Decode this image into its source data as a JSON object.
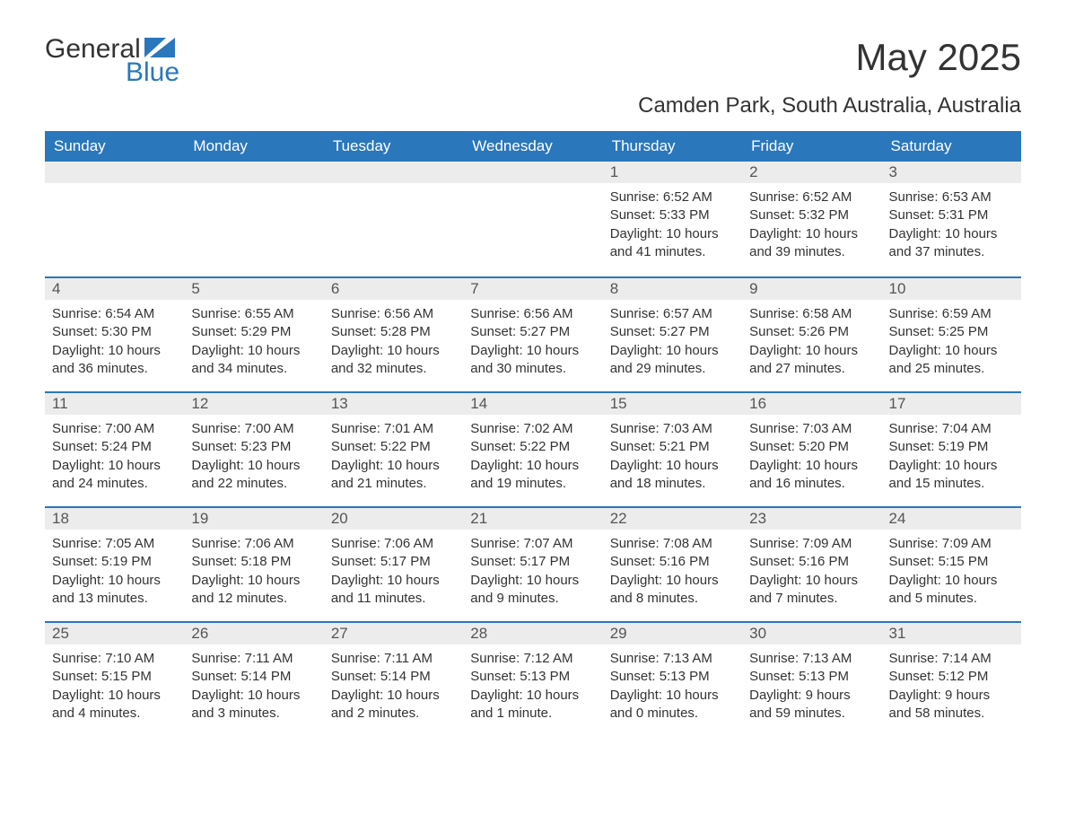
{
  "logo": {
    "word1": "General",
    "word2": "Blue"
  },
  "title": "May 2025",
  "location": "Camden Park, South Australia, Australia",
  "colors": {
    "brand_blue": "#2a77bc",
    "header_text": "#ffffff",
    "daynum_bg": "#ececec",
    "body_text": "#333333",
    "background": "#ffffff"
  },
  "weekdays": [
    "Sunday",
    "Monday",
    "Tuesday",
    "Wednesday",
    "Thursday",
    "Friday",
    "Saturday"
  ],
  "weeks": [
    [
      null,
      null,
      null,
      null,
      {
        "n": "1",
        "sunrise": "Sunrise: 6:52 AM",
        "sunset": "Sunset: 5:33 PM",
        "day1": "Daylight: 10 hours",
        "day2": "and 41 minutes."
      },
      {
        "n": "2",
        "sunrise": "Sunrise: 6:52 AM",
        "sunset": "Sunset: 5:32 PM",
        "day1": "Daylight: 10 hours",
        "day2": "and 39 minutes."
      },
      {
        "n": "3",
        "sunrise": "Sunrise: 6:53 AM",
        "sunset": "Sunset: 5:31 PM",
        "day1": "Daylight: 10 hours",
        "day2": "and 37 minutes."
      }
    ],
    [
      {
        "n": "4",
        "sunrise": "Sunrise: 6:54 AM",
        "sunset": "Sunset: 5:30 PM",
        "day1": "Daylight: 10 hours",
        "day2": "and 36 minutes."
      },
      {
        "n": "5",
        "sunrise": "Sunrise: 6:55 AM",
        "sunset": "Sunset: 5:29 PM",
        "day1": "Daylight: 10 hours",
        "day2": "and 34 minutes."
      },
      {
        "n": "6",
        "sunrise": "Sunrise: 6:56 AM",
        "sunset": "Sunset: 5:28 PM",
        "day1": "Daylight: 10 hours",
        "day2": "and 32 minutes."
      },
      {
        "n": "7",
        "sunrise": "Sunrise: 6:56 AM",
        "sunset": "Sunset: 5:27 PM",
        "day1": "Daylight: 10 hours",
        "day2": "and 30 minutes."
      },
      {
        "n": "8",
        "sunrise": "Sunrise: 6:57 AM",
        "sunset": "Sunset: 5:27 PM",
        "day1": "Daylight: 10 hours",
        "day2": "and 29 minutes."
      },
      {
        "n": "9",
        "sunrise": "Sunrise: 6:58 AM",
        "sunset": "Sunset: 5:26 PM",
        "day1": "Daylight: 10 hours",
        "day2": "and 27 minutes."
      },
      {
        "n": "10",
        "sunrise": "Sunrise: 6:59 AM",
        "sunset": "Sunset: 5:25 PM",
        "day1": "Daylight: 10 hours",
        "day2": "and 25 minutes."
      }
    ],
    [
      {
        "n": "11",
        "sunrise": "Sunrise: 7:00 AM",
        "sunset": "Sunset: 5:24 PM",
        "day1": "Daylight: 10 hours",
        "day2": "and 24 minutes."
      },
      {
        "n": "12",
        "sunrise": "Sunrise: 7:00 AM",
        "sunset": "Sunset: 5:23 PM",
        "day1": "Daylight: 10 hours",
        "day2": "and 22 minutes."
      },
      {
        "n": "13",
        "sunrise": "Sunrise: 7:01 AM",
        "sunset": "Sunset: 5:22 PM",
        "day1": "Daylight: 10 hours",
        "day2": "and 21 minutes."
      },
      {
        "n": "14",
        "sunrise": "Sunrise: 7:02 AM",
        "sunset": "Sunset: 5:22 PM",
        "day1": "Daylight: 10 hours",
        "day2": "and 19 minutes."
      },
      {
        "n": "15",
        "sunrise": "Sunrise: 7:03 AM",
        "sunset": "Sunset: 5:21 PM",
        "day1": "Daylight: 10 hours",
        "day2": "and 18 minutes."
      },
      {
        "n": "16",
        "sunrise": "Sunrise: 7:03 AM",
        "sunset": "Sunset: 5:20 PM",
        "day1": "Daylight: 10 hours",
        "day2": "and 16 minutes."
      },
      {
        "n": "17",
        "sunrise": "Sunrise: 7:04 AM",
        "sunset": "Sunset: 5:19 PM",
        "day1": "Daylight: 10 hours",
        "day2": "and 15 minutes."
      }
    ],
    [
      {
        "n": "18",
        "sunrise": "Sunrise: 7:05 AM",
        "sunset": "Sunset: 5:19 PM",
        "day1": "Daylight: 10 hours",
        "day2": "and 13 minutes."
      },
      {
        "n": "19",
        "sunrise": "Sunrise: 7:06 AM",
        "sunset": "Sunset: 5:18 PM",
        "day1": "Daylight: 10 hours",
        "day2": "and 12 minutes."
      },
      {
        "n": "20",
        "sunrise": "Sunrise: 7:06 AM",
        "sunset": "Sunset: 5:17 PM",
        "day1": "Daylight: 10 hours",
        "day2": "and 11 minutes."
      },
      {
        "n": "21",
        "sunrise": "Sunrise: 7:07 AM",
        "sunset": "Sunset: 5:17 PM",
        "day1": "Daylight: 10 hours",
        "day2": "and 9 minutes."
      },
      {
        "n": "22",
        "sunrise": "Sunrise: 7:08 AM",
        "sunset": "Sunset: 5:16 PM",
        "day1": "Daylight: 10 hours",
        "day2": "and 8 minutes."
      },
      {
        "n": "23",
        "sunrise": "Sunrise: 7:09 AM",
        "sunset": "Sunset: 5:16 PM",
        "day1": "Daylight: 10 hours",
        "day2": "and 7 minutes."
      },
      {
        "n": "24",
        "sunrise": "Sunrise: 7:09 AM",
        "sunset": "Sunset: 5:15 PM",
        "day1": "Daylight: 10 hours",
        "day2": "and 5 minutes."
      }
    ],
    [
      {
        "n": "25",
        "sunrise": "Sunrise: 7:10 AM",
        "sunset": "Sunset: 5:15 PM",
        "day1": "Daylight: 10 hours",
        "day2": "and 4 minutes."
      },
      {
        "n": "26",
        "sunrise": "Sunrise: 7:11 AM",
        "sunset": "Sunset: 5:14 PM",
        "day1": "Daylight: 10 hours",
        "day2": "and 3 minutes."
      },
      {
        "n": "27",
        "sunrise": "Sunrise: 7:11 AM",
        "sunset": "Sunset: 5:14 PM",
        "day1": "Daylight: 10 hours",
        "day2": "and 2 minutes."
      },
      {
        "n": "28",
        "sunrise": "Sunrise: 7:12 AM",
        "sunset": "Sunset: 5:13 PM",
        "day1": "Daylight: 10 hours",
        "day2": "and 1 minute."
      },
      {
        "n": "29",
        "sunrise": "Sunrise: 7:13 AM",
        "sunset": "Sunset: 5:13 PM",
        "day1": "Daylight: 10 hours",
        "day2": "and 0 minutes."
      },
      {
        "n": "30",
        "sunrise": "Sunrise: 7:13 AM",
        "sunset": "Sunset: 5:13 PM",
        "day1": "Daylight: 9 hours",
        "day2": "and 59 minutes."
      },
      {
        "n": "31",
        "sunrise": "Sunrise: 7:14 AM",
        "sunset": "Sunset: 5:12 PM",
        "day1": "Daylight: 9 hours",
        "day2": "and 58 minutes."
      }
    ]
  ]
}
